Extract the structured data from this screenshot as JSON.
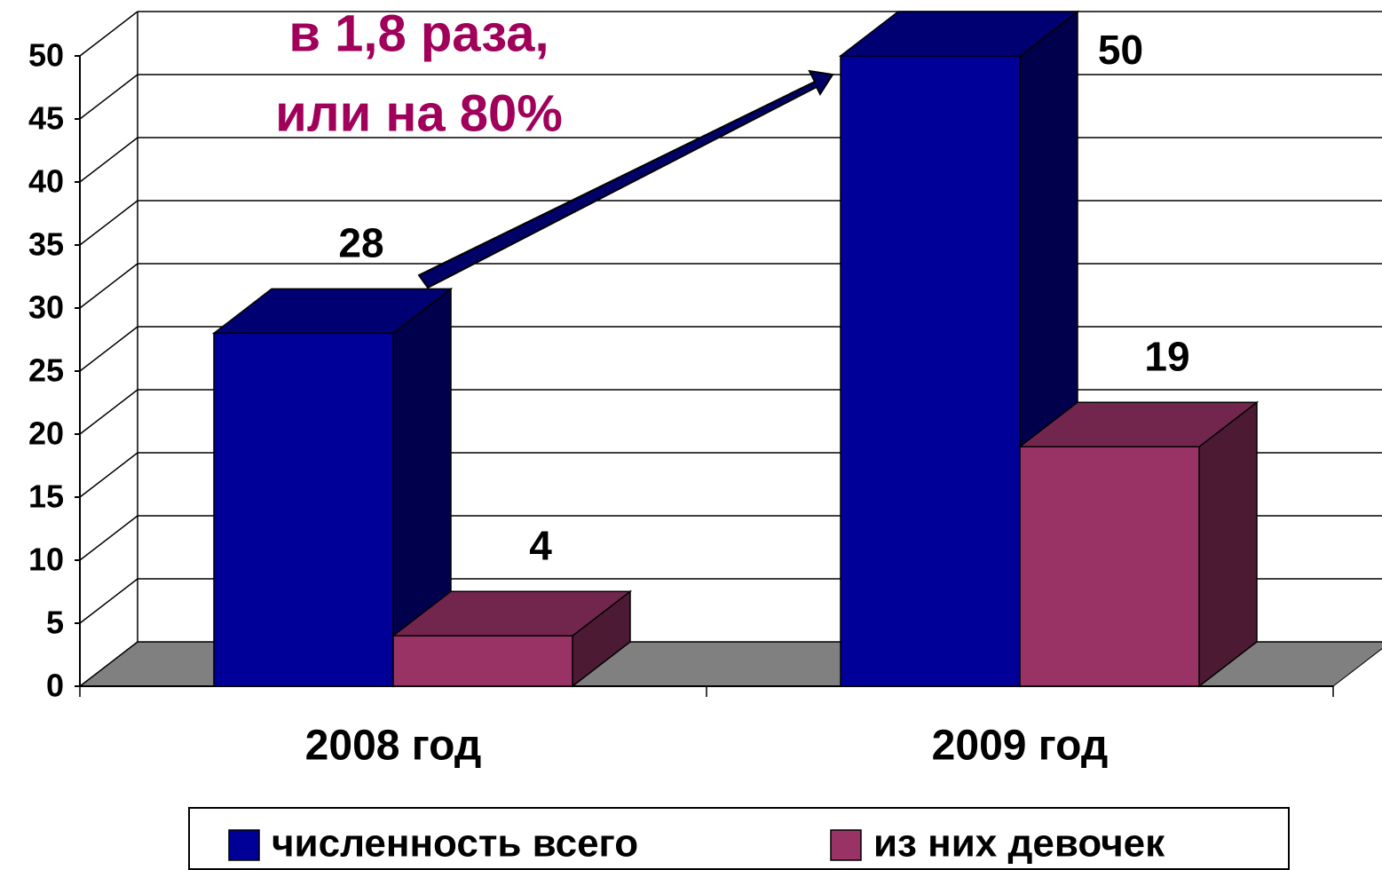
{
  "chart_data": {
    "type": "bar3d",
    "annotation": [
      "в 1,8 раза,",
      "или на 80%"
    ],
    "categories": [
      "2008 год",
      "2009 год"
    ],
    "series": [
      {
        "name": "численность всего",
        "color": "#000099",
        "values": [
          28,
          50
        ]
      },
      {
        "name": "из них девочек",
        "color": "#993366",
        "values": [
          4,
          19
        ]
      }
    ],
    "ylim": [
      0,
      50
    ],
    "yticks": [
      0,
      5,
      10,
      15,
      20,
      25,
      30,
      35,
      40,
      45,
      50
    ],
    "grid": true,
    "legend": "bottom"
  }
}
